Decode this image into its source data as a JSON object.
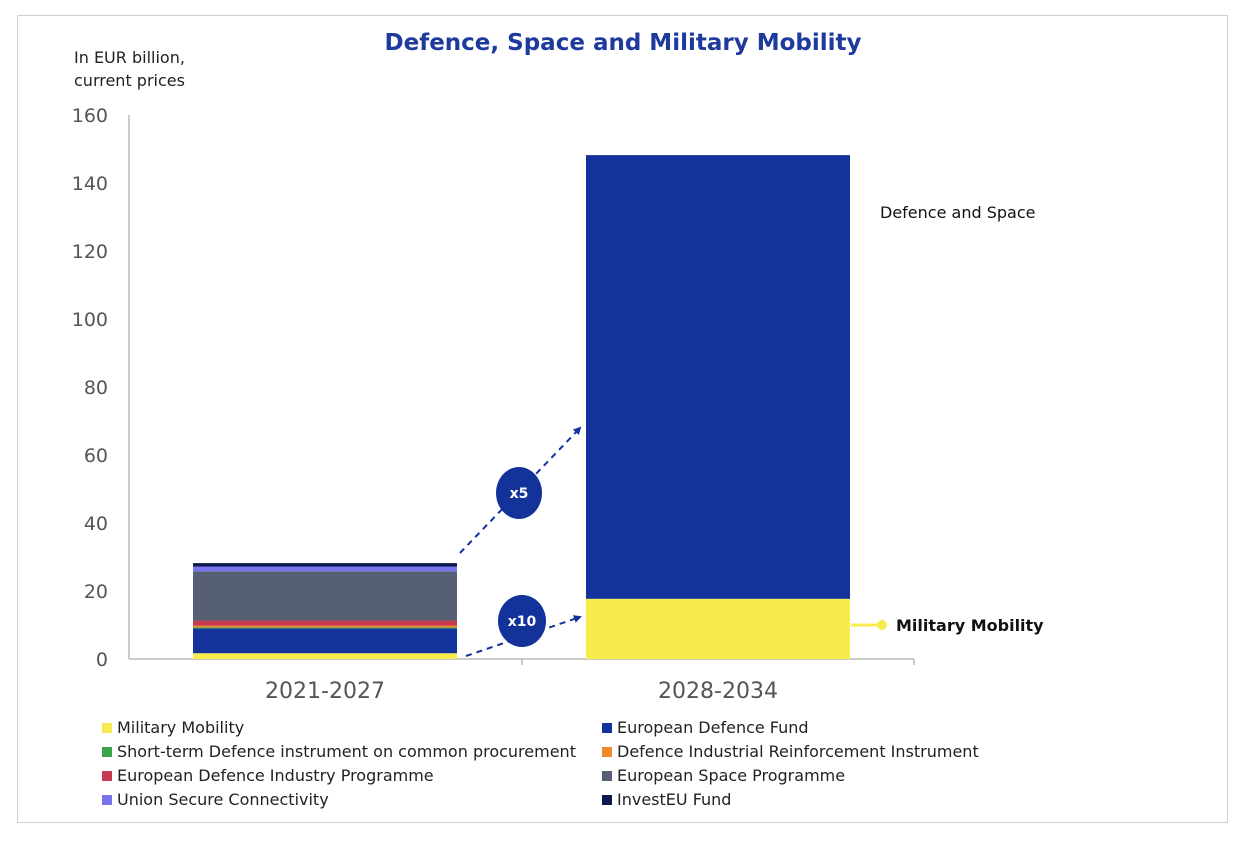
{
  "title": "Defence, Space and Military Mobility",
  "unit_label": [
    "In EUR billion,",
    "current prices"
  ],
  "colors": {
    "military_mobility": "#f9ea4e",
    "european_defence_fund": "#14339a",
    "short_term_defence": "#3fa34d",
    "defence_industrial_reinforcement": "#ee8a2a",
    "edip": "#c9384c",
    "space_programme": "#575f74",
    "secure_connectivity": "#7873ee",
    "investeu": "#0b1a4a",
    "defence_and_space": "#14339a",
    "arrow": "#14339a",
    "axis": "#999999"
  },
  "annotations": {
    "growth_defence": "x5",
    "growth_mobility": "x10",
    "label_defence_space": "Defence and Space",
    "label_military_mobility": "Military Mobility"
  },
  "chart_data": {
    "type": "bar",
    "stacked": true,
    "categories": [
      "2021-2027",
      "2028-2034"
    ],
    "ylim": [
      0,
      160
    ],
    "yticks": [
      0,
      20,
      40,
      60,
      80,
      100,
      120,
      140,
      160
    ],
    "ylabel": "In EUR billion, current prices",
    "grid": false,
    "legend_position": "bottom",
    "series": [
      {
        "name": "Military Mobility",
        "color_key": "military_mobility",
        "values": [
          1.7,
          17.7
        ]
      },
      {
        "name": "European Defence Fund",
        "color_key": "european_defence_fund",
        "values": [
          7.3,
          0
        ]
      },
      {
        "name": "Short-term Defence instrument on common procurement",
        "color_key": "short_term_defence",
        "values": [
          0.3,
          0
        ]
      },
      {
        "name": "Defence Industrial Reinforcement Instrument",
        "color_key": "defence_industrial_reinforcement",
        "values": [
          0.5,
          0
        ]
      },
      {
        "name": "European Defence Industry Programme",
        "color_key": "edip",
        "values": [
          1.5,
          0
        ]
      },
      {
        "name": "European Space Programme",
        "color_key": "space_programme",
        "values": [
          14.5,
          0
        ]
      },
      {
        "name": "Union Secure Connectivity",
        "color_key": "secure_connectivity",
        "values": [
          1.4,
          0
        ]
      },
      {
        "name": "InvestEU Fund",
        "color_key": "investeu",
        "values": [
          1.0,
          0
        ]
      },
      {
        "name": "Defence and Space",
        "color_key": "defence_and_space",
        "values": [
          0,
          130.5
        ],
        "in_legend": false
      }
    ]
  }
}
